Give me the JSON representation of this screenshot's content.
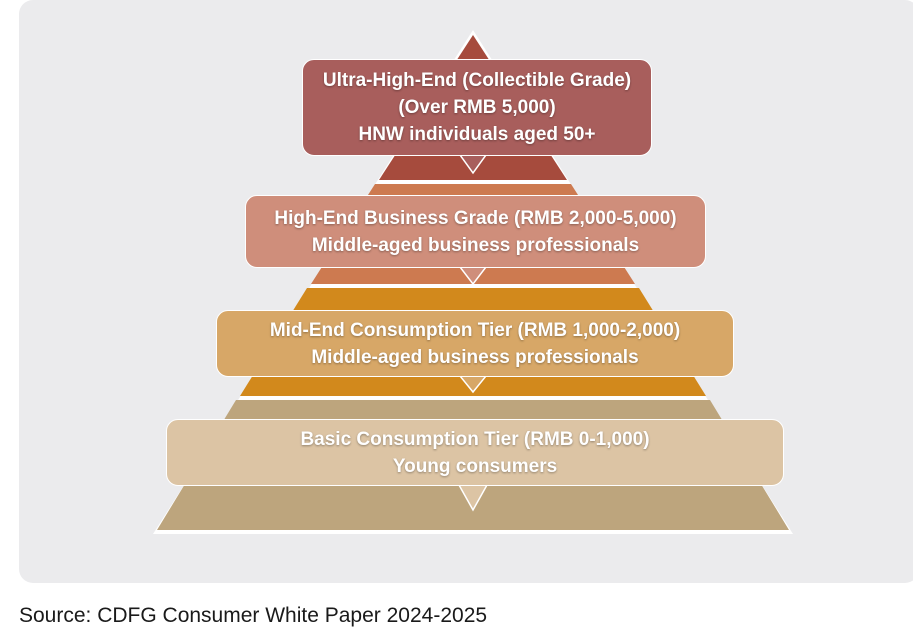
{
  "tiers": [
    {
      "line1": "Ultra-High-End (Collectible Grade)",
      "line2": "(Over RMB 5,000)",
      "line3": "HNW individuals aged 50+",
      "color_label": "#a85e5c",
      "color_band": "#a64b3d"
    },
    {
      "line1": "High-End Business Grade (RMB 2,000-5,000)",
      "line2": "Middle-aged business professionals",
      "color_label": "#cf8e7b",
      "color_band": "#cd7a50"
    },
    {
      "line1": "Mid-End Consumption Tier (RMB 1,000-2,000)",
      "line2": "Middle-aged business professionals",
      "color_label": "#d7a767",
      "color_band": "#d2891c"
    },
    {
      "line1": "Basic Consumption Tier (RMB 0-1,000)",
      "line2": "Young consumers",
      "color_label": "#dcc4a4",
      "color_band": "#bda57d"
    }
  ],
  "source": "Source: CDFG Consumer White Paper 2024-2025"
}
